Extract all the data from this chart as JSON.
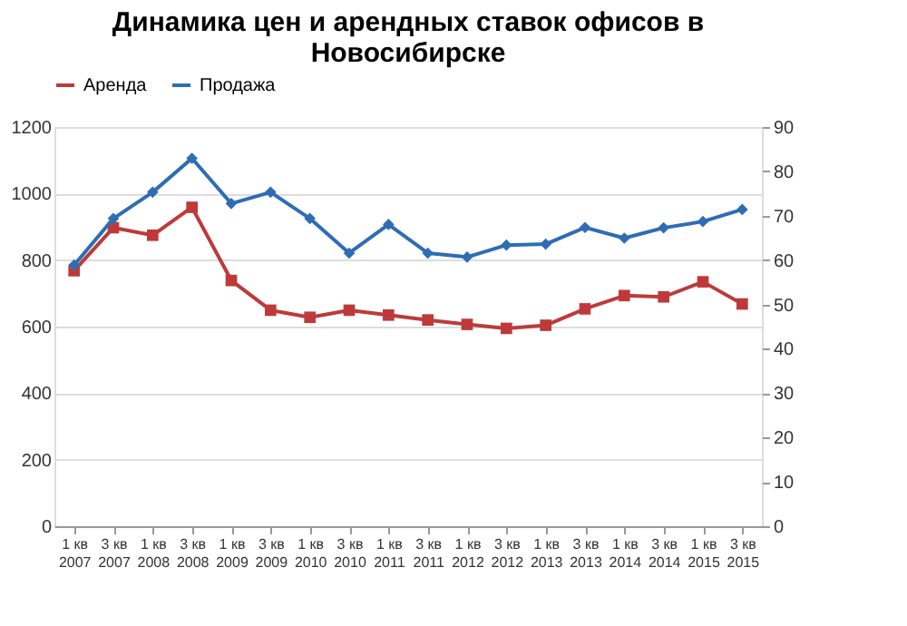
{
  "chart_data": {
    "type": "line",
    "title": [
      "Динамика цен и арендных ставок офисов в",
      "Новосибирске"
    ],
    "categories": [
      "1 кв\n2007",
      "3 кв\n2007",
      "1 кв\n2008",
      "3 кв\n2008",
      "1 кв\n2009",
      "3 кв\n2009",
      "1 кв\n2010",
      "3 кв\n2010",
      "1 кв\n2011",
      "3 кв\n2011",
      "1 кв\n2012",
      "3 кв\n2012",
      "1 кв\n2013",
      "3 кв\n2013",
      "1 кв\n2014",
      "3 кв\n2014",
      "1 кв\n2015",
      "3 кв\n2015"
    ],
    "series": [
      {
        "name": "Аренда",
        "color": "#be3a3a",
        "marker": "square",
        "axis": "y2",
        "values": [
          57.6,
          67.3,
          65.6,
          71.9,
          55.4,
          48.7,
          47.1,
          48.7,
          47.6,
          46.5,
          45.5,
          44.6,
          45.3,
          49.0,
          52.0,
          51.7,
          55.1,
          50.1
        ]
      },
      {
        "name": "Продажа",
        "color": "#2e6db4",
        "marker": "diamond",
        "axis": "y",
        "values": [
          785,
          925,
          1004,
          1106,
          970,
          1004,
          925,
          821,
          907,
          821,
          809,
          845,
          848,
          898,
          866,
          897,
          916,
          952
        ]
      }
    ],
    "ylim": [
      0,
      1200
    ],
    "yticks": [
      0,
      200,
      400,
      600,
      800,
      1000,
      1200
    ],
    "y2lim": [
      0,
      90
    ],
    "y2ticks": [
      0,
      10,
      20,
      30,
      40,
      50,
      60,
      70,
      80,
      90
    ],
    "grid": "y",
    "legend": "top"
  }
}
